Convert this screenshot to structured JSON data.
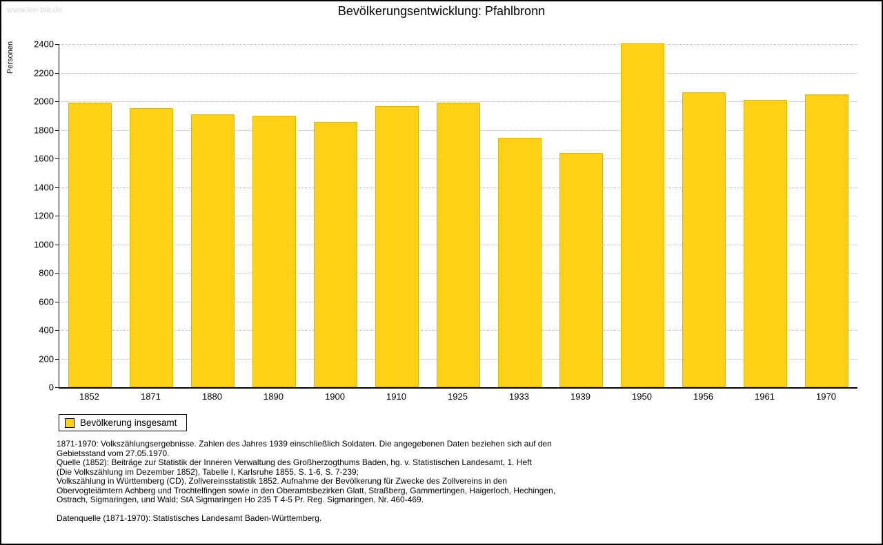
{
  "watermark": "www.leo-bw.de",
  "title": "Bevölkerungsentwicklung: Pfahlbronn",
  "chart_data": {
    "type": "bar",
    "title": "Bevölkerungsentwicklung: Pfahlbronn",
    "xlabel": "",
    "ylabel": "Personen",
    "categories": [
      "1852",
      "1871",
      "1880",
      "1890",
      "1900",
      "1910",
      "1925",
      "1933",
      "1939",
      "1950",
      "1956",
      "1961",
      "1970"
    ],
    "values": [
      1990,
      1950,
      1910,
      1900,
      1855,
      1965,
      1990,
      1745,
      1640,
      2405,
      2065,
      2010,
      2050
    ],
    "ylim": [
      0,
      2400
    ],
    "ytick_step": 200,
    "grid": true,
    "bar_color": "#FCD116",
    "bar_border_color": "#DFB400",
    "legend": {
      "position": "bottom-left",
      "label": "Bevölkerung insgesamt"
    }
  },
  "notes": {
    "lines": [
      "1871-1970: Volkszählungsergebnisse. Zahlen des Jahres 1939 einschließlich Soldaten. Die angegebenen Daten beziehen sich auf den",
      "Gebietsstand vom 27.05.1970.",
      "Quelle (1852): Beiträge zur Statistik der Inneren Verwaltung des Großherzogthums Baden, hg. v. Statistischen Landesamt, 1. Heft",
      "(Die Volkszählung im Dezember 1852), Tabelle I, Karlsruhe 1855, S. 1-6, S. 7-239;",
      "Volkszählung in Württemberg (CD), Zollvereinsstatistik 1852. Aufnahme der Bevölkerung für Zwecke des Zollvereins in den",
      "Obervogteiämtern Achberg und Trochtelfingen sowie in den Oberamtsbezirken Glatt, Straßberg, Gammertingen, Haigerloch, Hechingen,",
      "Ostrach, Sigmaringen, und Wald; StA Sigmaringen Ho 235 T 4-5 Pr. Reg. Sigmaringen, Nr. 460-469.",
      "",
      "Datenquelle (1871-1970): Statistisches Landesamt Baden-Württemberg."
    ]
  }
}
